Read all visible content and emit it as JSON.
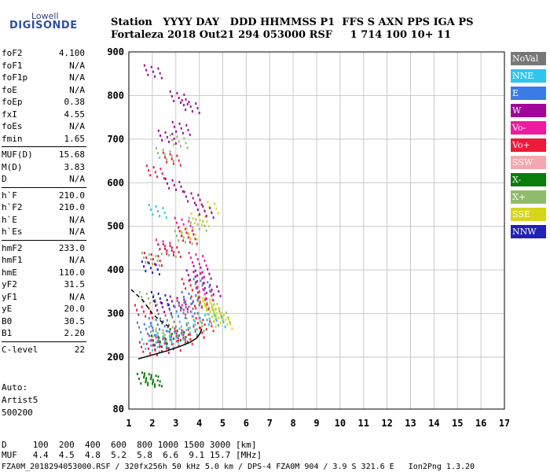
{
  "logo": {
    "brand": "Lowell",
    "product": "DIGISONDE"
  },
  "header": {
    "line1": "Station   YYYY DAY   DDD HHMMSS P1  FFS S AXN PPS IGA PS",
    "line2": "Fortaleza 2018 Out21 294 053000 RSF     1 714 100 10+ 11"
  },
  "params": [
    {
      "label": "foF2",
      "value": "4.100"
    },
    {
      "label": "foF1",
      "value": "N/A"
    },
    {
      "label": "foF1p",
      "value": "N/A"
    },
    {
      "label": "foE",
      "value": "N/A"
    },
    {
      "label": "foEp",
      "value": "0.38"
    },
    {
      "label": "fxI",
      "value": "4.55"
    },
    {
      "label": "foEs",
      "value": "N/A"
    },
    {
      "label": "fmin",
      "value": "1.65"
    },
    {
      "label": "MUF(D)",
      "value": "15.68"
    },
    {
      "label": "M(D)",
      "value": "3.83"
    },
    {
      "label": "D",
      "value": "N/A"
    },
    {
      "label": "h`F",
      "value": "210.0"
    },
    {
      "label": "h`F2",
      "value": "210.0"
    },
    {
      "label": "h`E",
      "value": "N/A"
    },
    {
      "label": "h`Es",
      "value": "N/A"
    },
    {
      "label": "hmF2",
      "value": "233.0"
    },
    {
      "label": "hmF1",
      "value": "N/A"
    },
    {
      "label": "hmE",
      "value": "110.0"
    },
    {
      "label": "yF2",
      "value": "31.5"
    },
    {
      "label": "yF1",
      "value": "N/A"
    },
    {
      "label": "yE",
      "value": "20.0"
    },
    {
      "label": "B0",
      "value": "30.5"
    },
    {
      "label": "B1",
      "value": "2.20"
    },
    {
      "label": "C-level",
      "value": "22"
    }
  ],
  "autoscaling": {
    "line1": "Auto:",
    "line2": "Artist5",
    "line3": "500200"
  },
  "footer": {
    "d_row": "D     100  200  400  600  800 1000 1500 3000 [km]",
    "muf_row": "MUF   4.4  4.5  4.8  5.2  5.8  6.6  9.1 15.7 [MHz]",
    "file_row": "FZA0M_2018294053000.RSF / 320fx256h 50 kHz 5.0 km / DPS-4 FZA0M 904 / 3.9 S 321.6 E   Ion2Png 1.3.20"
  },
  "legend": [
    {
      "label": "NoVal",
      "color": "#777777"
    },
    {
      "label": "NNE",
      "color": "#2fc6ee"
    },
    {
      "label": "E",
      "color": "#3b7be8"
    },
    {
      "label": "W",
      "color": "#a1069b"
    },
    {
      "label": "Vo-",
      "color": "#f01aa0"
    },
    {
      "label": "Vo+",
      "color": "#ee1a3a"
    },
    {
      "label": "SSW",
      "color": "#f5a7ae"
    },
    {
      "label": "X-",
      "color": "#0a7d0a"
    },
    {
      "label": "X+",
      "color": "#8fbc6a"
    },
    {
      "label": "SSE",
      "color": "#d5d61c"
    },
    {
      "label": "NNW",
      "color": "#2121b8"
    }
  ],
  "chart_data": {
    "type": "scatter",
    "title": "",
    "xlabel": "",
    "ylabel": "",
    "xlim": [
      1,
      17
    ],
    "ylim": [
      80,
      900
    ],
    "xticks": [
      1,
      2,
      3,
      4,
      5,
      6,
      7,
      8,
      9,
      10,
      11,
      12,
      13,
      14,
      15,
      16,
      17
    ],
    "yticks": [
      80,
      200,
      300,
      400,
      500,
      600,
      700,
      800,
      900
    ],
    "grid": true,
    "legend_position": "right",
    "series": [
      {
        "name": "X+",
        "points": [
          [
            1.8,
            330
          ],
          [
            2.2,
            250
          ],
          [
            2.5,
            240
          ],
          [
            3.2,
            250
          ],
          [
            3.8,
            270
          ],
          [
            4.3,
            320
          ],
          [
            4.6,
            300
          ],
          [
            4.9,
            290
          ],
          [
            1.9,
            420
          ],
          [
            2.6,
            440
          ],
          [
            3.3,
            470
          ],
          [
            3.9,
            500
          ],
          [
            2.5,
            660
          ],
          [
            3.1,
            690
          ]
        ]
      },
      {
        "name": "SSE",
        "points": [
          [
            4.3,
            280
          ],
          [
            4.6,
            300
          ],
          [
            4.8,
            285
          ],
          [
            5.0,
            275
          ],
          [
            4.5,
            310
          ],
          [
            4.2,
            320
          ],
          [
            4.0,
            510
          ],
          [
            4.4,
            540
          ],
          [
            3.5,
            480
          ]
        ]
      },
      {
        "name": "Vo+",
        "points": [
          [
            1.8,
            215
          ],
          [
            2.3,
            220
          ],
          [
            2.8,
            225
          ],
          [
            3.3,
            240
          ],
          [
            3.8,
            255
          ],
          [
            4.2,
            270
          ],
          [
            2.0,
            420
          ],
          [
            2.8,
            440
          ],
          [
            3.5,
            470
          ],
          [
            2.1,
            620
          ],
          [
            2.8,
            650
          ],
          [
            1.6,
            300
          ],
          [
            4.0,
            320
          ],
          [
            3.6,
            360
          ]
        ]
      },
      {
        "name": "W",
        "points": [
          [
            2.0,
            850
          ],
          [
            3.1,
            790
          ],
          [
            2.6,
            700
          ],
          [
            3.2,
            720
          ],
          [
            3.6,
            770
          ],
          [
            2.9,
            590
          ],
          [
            3.7,
            560
          ],
          [
            4.2,
            530
          ],
          [
            3.8,
            380
          ],
          [
            4.1,
            390
          ],
          [
            4.5,
            350
          ],
          [
            3.1,
            320
          ],
          [
            2.4,
            310
          ]
        ]
      },
      {
        "name": "Vo-",
        "points": [
          [
            2.2,
            230
          ],
          [
            3.0,
            250
          ],
          [
            3.6,
            300
          ],
          [
            4.2,
            340
          ],
          [
            2.5,
            450
          ],
          [
            3.3,
            500
          ],
          [
            3.9,
            420
          ]
        ]
      },
      {
        "name": "NNE",
        "points": [
          [
            1.9,
            222
          ],
          [
            2.5,
            232
          ],
          [
            3.0,
            240
          ],
          [
            3.5,
            262
          ],
          [
            4.0,
            285
          ],
          [
            4.7,
            280
          ],
          [
            2.2,
            530
          ]
        ]
      },
      {
        "name": "E",
        "points": [
          [
            1.7,
            260
          ],
          [
            2.2,
            270
          ],
          [
            3.0,
            300
          ],
          [
            3.6,
            330
          ],
          [
            4.1,
            360
          ]
        ]
      },
      {
        "name": "NNW",
        "points": [
          [
            1.9,
            400
          ],
          [
            2.3,
            330
          ]
        ]
      },
      {
        "name": "X-",
        "points": [
          [
            1.7,
            142
          ],
          [
            1.9,
            145
          ],
          [
            2.0,
            143
          ],
          [
            2.3,
            230
          ],
          [
            3.1,
            245
          ]
        ]
      },
      {
        "name": "NoVal",
        "points": [
          [
            2.6,
            280
          ],
          [
            3.4,
            310
          ]
        ]
      }
    ],
    "profile_solid": [
      [
        1.4,
        196
      ],
      [
        2.0,
        205
      ],
      [
        2.6,
        214
      ],
      [
        3.2,
        225
      ],
      [
        3.6,
        234
      ],
      [
        3.9,
        244
      ],
      [
        4.05,
        256
      ],
      [
        4.1,
        265
      ]
    ],
    "profile_dashed": [
      [
        1.1,
        355
      ],
      [
        1.6,
        330
      ],
      [
        2.0,
        300
      ],
      [
        2.3,
        285
      ],
      [
        2.7,
        270
      ]
    ]
  }
}
